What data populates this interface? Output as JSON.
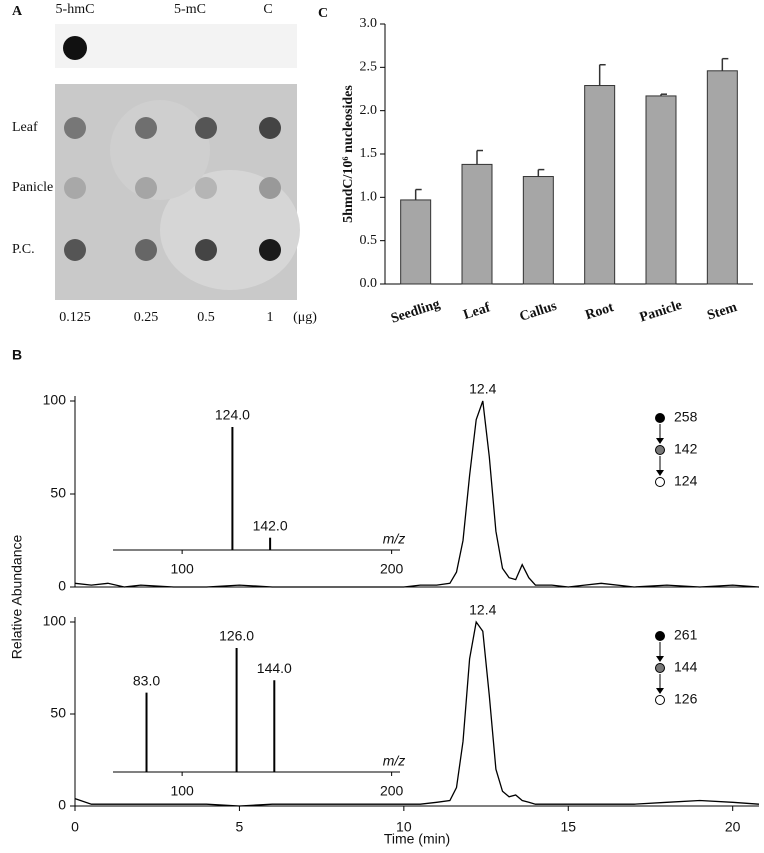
{
  "panel_a": {
    "label": "A",
    "columns": [
      "5-hmC",
      "5-mC",
      "C"
    ],
    "rows": [
      "Leaf",
      "Panicle",
      "P.C."
    ],
    "amounts": [
      0.125,
      0.25,
      0.5,
      1
    ],
    "unit": "(μg)"
  },
  "chart_data": [
    {
      "type": "bar",
      "panel": "C",
      "ylabel": "5hmdC/10⁶ nucleosides",
      "categories": [
        "Seedling",
        "Leaf",
        "Callus",
        "Root",
        "Panicle",
        "Stem"
      ],
      "values": [
        0.97,
        1.38,
        1.24,
        2.29,
        2.17,
        2.46
      ],
      "errors": [
        0.12,
        0.16,
        0.08,
        0.24,
        0.02,
        0.14
      ],
      "color": "#a6a6a6",
      "ylim": [
        0,
        3
      ],
      "yticks": [
        {
          "value": 0,
          "label": "0.0"
        },
        0.5,
        {
          "value": 1,
          "label": "1.0"
        },
        1.5,
        {
          "value": 2,
          "label": "2.0"
        },
        2.5,
        {
          "value": 3,
          "label": "3.0"
        }
      ]
    },
    {
      "type": "line",
      "panel": "B",
      "x": [
        0,
        0.5,
        1,
        1.5,
        2,
        3,
        4,
        5,
        6,
        7,
        8,
        9,
        10,
        10.5,
        11,
        11.4,
        11.6,
        11.8,
        12,
        12.2,
        12.4,
        12.6,
        12.8,
        13,
        13.2,
        13.4,
        13.6,
        13.8,
        14,
        14.5,
        15,
        15.5,
        16,
        17,
        18,
        19,
        20,
        20.8
      ],
      "values": [
        2,
        1,
        2,
        0,
        1,
        0,
        0,
        1,
        0,
        0,
        0,
        0,
        0,
        1,
        1,
        2,
        8,
        25,
        60,
        90,
        100,
        70,
        30,
        10,
        5,
        4,
        12,
        5,
        1,
        1,
        0,
        1,
        2,
        0,
        1,
        0,
        1,
        0
      ],
      "color": "#000000",
      "xlim": [
        0,
        20.8
      ],
      "ylim": [
        0,
        100
      ],
      "yticks": [
        0,
        50,
        100
      ],
      "peak_labels": [
        12.4
      ],
      "fragments": [
        258,
        142,
        124
      ]
    },
    {
      "type": "stem",
      "x": [
        124,
        142
      ],
      "x_labels": [
        "124.0",
        "142.0"
      ],
      "values": [
        100,
        10
      ],
      "xlim": [
        67,
        204
      ],
      "xticks": [
        100,
        200
      ],
      "xlabel": "m/z",
      "color": "#000000"
    },
    {
      "type": "line",
      "xlabel": "Time (min)",
      "ylabel": "Relative Abundance",
      "x": [
        0,
        0.5,
        1,
        1.5,
        2,
        3,
        4,
        5,
        6,
        7,
        8,
        9,
        10,
        10.5,
        11,
        11.4,
        11.6,
        11.8,
        12,
        12.2,
        12.4,
        12.6,
        12.8,
        13,
        13.2,
        13.4,
        13.6,
        13.8,
        14,
        14.5,
        15,
        15.5,
        16,
        17,
        18,
        19,
        20,
        20.8
      ],
      "values": [
        4,
        1,
        1,
        1,
        1,
        1,
        1,
        0,
        1,
        1,
        1,
        1,
        1,
        1,
        2,
        3,
        10,
        35,
        80,
        100,
        95,
        60,
        20,
        8,
        5,
        6,
        3,
        2,
        1,
        1,
        1,
        1,
        1,
        1,
        2,
        3,
        2,
        1
      ],
      "color": "#000000",
      "xlim": [
        0,
        20.8
      ],
      "ylim": [
        0,
        100
      ],
      "yticks": [
        0,
        50,
        100
      ],
      "xticks": [
        0,
        5,
        10,
        15,
        20
      ],
      "peak_labels": [
        12.4
      ],
      "fragments": [
        261,
        144,
        126
      ]
    },
    {
      "type": "stem",
      "x": [
        83,
        126,
        144
      ],
      "x_labels": [
        "83.0",
        "126.0",
        "144.0"
      ],
      "values": [
        64,
        100,
        74
      ],
      "xlim": [
        67,
        204
      ],
      "xticks": [
        100,
        200
      ],
      "xlabel": "m/z",
      "color": "#000000"
    }
  ]
}
